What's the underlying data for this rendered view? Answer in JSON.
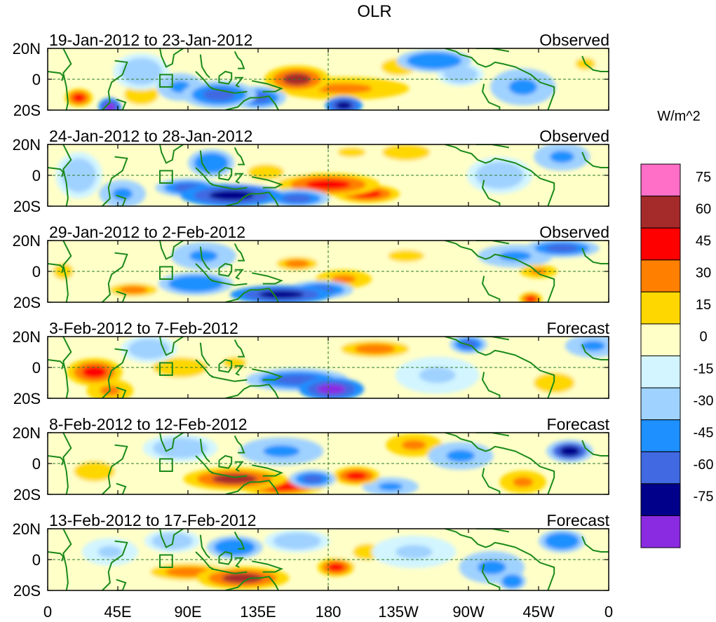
{
  "chart_data": {
    "type": "heatmap",
    "title": "OLR",
    "units": "W/m^2",
    "xlabel": "",
    "ylabel": "",
    "x_ticks": [
      "0",
      "45E",
      "90E",
      "135E",
      "180",
      "135W",
      "90W",
      "45W",
      "0"
    ],
    "x_range_deg": [
      0,
      360
    ],
    "y_ticks": [
      "20N",
      "0",
      "20S"
    ],
    "y_range_deg": [
      -20,
      20
    ],
    "colorbar": {
      "labels": [
        "75",
        "60",
        "45",
        "30",
        "15",
        "0",
        "-15",
        "-30",
        "-45",
        "-60",
        "-75"
      ],
      "colors": [
        "#ff6ec7",
        "#a52a2a",
        "#ff0000",
        "#ff7f00",
        "#ffd700",
        "#ffffc8",
        "#d2f5ff",
        "#a0d2ff",
        "#1e90ff",
        "#4169e1",
        "#00008b",
        "#8a2be2"
      ]
    },
    "panels": [
      {
        "period": "19-Jan-2012 to 23-Jan-2012",
        "kind": "Observed",
        "features": [
          {
            "lon": 160,
            "lat": 0,
            "value": 60,
            "sx": 14,
            "sy": 6
          },
          {
            "lon": 190,
            "lat": -6,
            "value": 35,
            "sx": 28,
            "sy": 5
          },
          {
            "lon": 20,
            "lat": -12,
            "value": 55,
            "sx": 6,
            "sy": 4
          },
          {
            "lon": 60,
            "lat": -10,
            "value": 25,
            "sx": 10,
            "sy": 6
          },
          {
            "lon": 110,
            "lat": -10,
            "value": -55,
            "sx": 16,
            "sy": 6
          },
          {
            "lon": 135,
            "lat": -12,
            "value": -50,
            "sx": 12,
            "sy": 5
          },
          {
            "lon": 190,
            "lat": -17,
            "value": -70,
            "sx": 8,
            "sy": 4
          },
          {
            "lon": 40,
            "lat": -18,
            "value": -80,
            "sx": 5,
            "sy": 4
          },
          {
            "lon": 85,
            "lat": -5,
            "value": -40,
            "sx": 10,
            "sy": 6
          },
          {
            "lon": 60,
            "lat": 5,
            "value": -25,
            "sx": 12,
            "sy": 8
          },
          {
            "lon": 248,
            "lat": 12,
            "value": -45,
            "sx": 16,
            "sy": 5
          },
          {
            "lon": 265,
            "lat": 3,
            "value": -30,
            "sx": 10,
            "sy": 5
          },
          {
            "lon": 305,
            "lat": -5,
            "value": -35,
            "sx": 14,
            "sy": 8
          },
          {
            "lon": 225,
            "lat": 8,
            "value": 25,
            "sx": 10,
            "sy": 5
          },
          {
            "lon": 345,
            "lat": 10,
            "value": 20,
            "sx": 10,
            "sy": 6
          }
        ]
      },
      {
        "period": "24-Jan-2012 to 28-Jan-2012",
        "kind": "Observed",
        "features": [
          {
            "lon": 180,
            "lat": -6,
            "value": 48,
            "sx": 22,
            "sy": 5
          },
          {
            "lon": 205,
            "lat": -12,
            "value": 45,
            "sx": 14,
            "sy": 4
          },
          {
            "lon": 140,
            "lat": 2,
            "value": 20,
            "sx": 18,
            "sy": 8
          },
          {
            "lon": 118,
            "lat": -13,
            "value": -70,
            "sx": 22,
            "sy": 5
          },
          {
            "lon": 90,
            "lat": -8,
            "value": -55,
            "sx": 14,
            "sy": 4
          },
          {
            "lon": 160,
            "lat": -15,
            "value": -50,
            "sx": 14,
            "sy": 4
          },
          {
            "lon": 105,
            "lat": 8,
            "value": -45,
            "sx": 10,
            "sy": 6
          },
          {
            "lon": 48,
            "lat": -12,
            "value": -40,
            "sx": 10,
            "sy": 6
          },
          {
            "lon": 230,
            "lat": 15,
            "value": 22,
            "sx": 14,
            "sy": 5
          },
          {
            "lon": 195,
            "lat": 15,
            "value": 20,
            "sx": 14,
            "sy": 5
          },
          {
            "lon": 290,
            "lat": 0,
            "value": -30,
            "sx": 14,
            "sy": 8
          },
          {
            "lon": 330,
            "lat": 12,
            "value": -40,
            "sx": 12,
            "sy": 6
          },
          {
            "lon": 20,
            "lat": 0,
            "value": -25,
            "sx": 10,
            "sy": 10
          }
        ]
      },
      {
        "period": "29-Jan-2012 to 2-Feb-2012",
        "kind": "Observed",
        "features": [
          {
            "lon": 150,
            "lat": -15,
            "value": -75,
            "sx": 22,
            "sy": 4
          },
          {
            "lon": 175,
            "lat": -12,
            "value": -55,
            "sx": 14,
            "sy": 4
          },
          {
            "lon": 95,
            "lat": -8,
            "value": -45,
            "sx": 16,
            "sy": 5
          },
          {
            "lon": 100,
            "lat": 10,
            "value": -40,
            "sx": 14,
            "sy": 6
          },
          {
            "lon": 190,
            "lat": -5,
            "value": 40,
            "sx": 12,
            "sy": 4
          },
          {
            "lon": 160,
            "lat": 5,
            "value": 30,
            "sx": 12,
            "sy": 4
          },
          {
            "lon": 55,
            "lat": -12,
            "value": 30,
            "sx": 14,
            "sy": 4
          },
          {
            "lon": 10,
            "lat": 0,
            "value": 20,
            "sx": 10,
            "sy": 8
          },
          {
            "lon": 330,
            "lat": 15,
            "value": -60,
            "sx": 16,
            "sy": 4
          },
          {
            "lon": 300,
            "lat": 10,
            "value": -40,
            "sx": 16,
            "sy": 5
          },
          {
            "lon": 315,
            "lat": 0,
            "value": 40,
            "sx": 8,
            "sy": 3
          },
          {
            "lon": 310,
            "lat": -18,
            "value": 50,
            "sx": 5,
            "sy": 3
          },
          {
            "lon": 230,
            "lat": 10,
            "value": 18,
            "sx": 18,
            "sy": 6
          }
        ]
      },
      {
        "period": "3-Feb-2012 to 7-Feb-2012",
        "kind": "Forecast",
        "features": [
          {
            "lon": 182,
            "lat": -14,
            "value": -80,
            "sx": 14,
            "sy": 5
          },
          {
            "lon": 160,
            "lat": -8,
            "value": -50,
            "sx": 22,
            "sy": 5
          },
          {
            "lon": 30,
            "lat": -3,
            "value": 50,
            "sx": 12,
            "sy": 6
          },
          {
            "lon": 40,
            "lat": -15,
            "value": 35,
            "sx": 10,
            "sy": 5
          },
          {
            "lon": 85,
            "lat": 0,
            "value": 25,
            "sx": 16,
            "sy": 6
          },
          {
            "lon": 120,
            "lat": 3,
            "value": 20,
            "sx": 12,
            "sy": 6
          },
          {
            "lon": 210,
            "lat": 12,
            "value": 30,
            "sx": 20,
            "sy": 5
          },
          {
            "lon": 270,
            "lat": 15,
            "value": -60,
            "sx": 8,
            "sy": 4
          },
          {
            "lon": 350,
            "lat": 14,
            "value": -40,
            "sx": 12,
            "sy": 5
          },
          {
            "lon": 250,
            "lat": -5,
            "value": -20,
            "sx": 18,
            "sy": 8
          },
          {
            "lon": 325,
            "lat": -10,
            "value": 25,
            "sx": 12,
            "sy": 6
          },
          {
            "lon": 65,
            "lat": 12,
            "value": -25,
            "sx": 12,
            "sy": 6
          }
        ]
      },
      {
        "period": "8-Feb-2012 to 12-Feb-2012",
        "kind": "Forecast",
        "features": [
          {
            "lon": 120,
            "lat": -10,
            "value": 62,
            "sx": 22,
            "sy": 5
          },
          {
            "lon": 150,
            "lat": -15,
            "value": 50,
            "sx": 18,
            "sy": 4
          },
          {
            "lon": 198,
            "lat": -8,
            "value": 50,
            "sx": 10,
            "sy": 4
          },
          {
            "lon": 235,
            "lat": 12,
            "value": 35,
            "sx": 12,
            "sy": 5
          },
          {
            "lon": 170,
            "lat": -10,
            "value": -55,
            "sx": 10,
            "sy": 4
          },
          {
            "lon": 150,
            "lat": 8,
            "value": -35,
            "sx": 18,
            "sy": 6
          },
          {
            "lon": 85,
            "lat": 10,
            "value": -30,
            "sx": 16,
            "sy": 6
          },
          {
            "lon": 335,
            "lat": 8,
            "value": -65,
            "sx": 10,
            "sy": 5
          },
          {
            "lon": 265,
            "lat": 5,
            "value": -35,
            "sx": 14,
            "sy": 6
          },
          {
            "lon": 305,
            "lat": -12,
            "value": 35,
            "sx": 10,
            "sy": 5
          },
          {
            "lon": 30,
            "lat": -5,
            "value": 25,
            "sx": 12,
            "sy": 6
          },
          {
            "lon": 220,
            "lat": -15,
            "value": -35,
            "sx": 12,
            "sy": 4
          }
        ]
      },
      {
        "period": "13-Feb-2012 to 17-Feb-2012",
        "kind": "Forecast",
        "features": [
          {
            "lon": 125,
            "lat": -12,
            "value": 62,
            "sx": 20,
            "sy": 5
          },
          {
            "lon": 90,
            "lat": -8,
            "value": 30,
            "sx": 22,
            "sy": 5
          },
          {
            "lon": 185,
            "lat": -5,
            "value": 45,
            "sx": 8,
            "sy": 4
          },
          {
            "lon": 205,
            "lat": 5,
            "value": 20,
            "sx": 14,
            "sy": 8
          },
          {
            "lon": 120,
            "lat": 8,
            "value": -45,
            "sx": 12,
            "sy": 5
          },
          {
            "lon": 160,
            "lat": 12,
            "value": -30,
            "sx": 14,
            "sy": 5
          },
          {
            "lon": 80,
            "lat": 12,
            "value": -30,
            "sx": 12,
            "sy": 5
          },
          {
            "lon": 330,
            "lat": 12,
            "value": -45,
            "sx": 10,
            "sy": 5
          },
          {
            "lon": 285,
            "lat": -5,
            "value": -35,
            "sx": 14,
            "sy": 7
          },
          {
            "lon": 298,
            "lat": -14,
            "value": -45,
            "sx": 6,
            "sy": 4
          },
          {
            "lon": 40,
            "lat": 5,
            "value": -20,
            "sx": 12,
            "sy": 6
          },
          {
            "lon": 235,
            "lat": 5,
            "value": -20,
            "sx": 18,
            "sy": 7
          }
        ]
      }
    ]
  }
}
